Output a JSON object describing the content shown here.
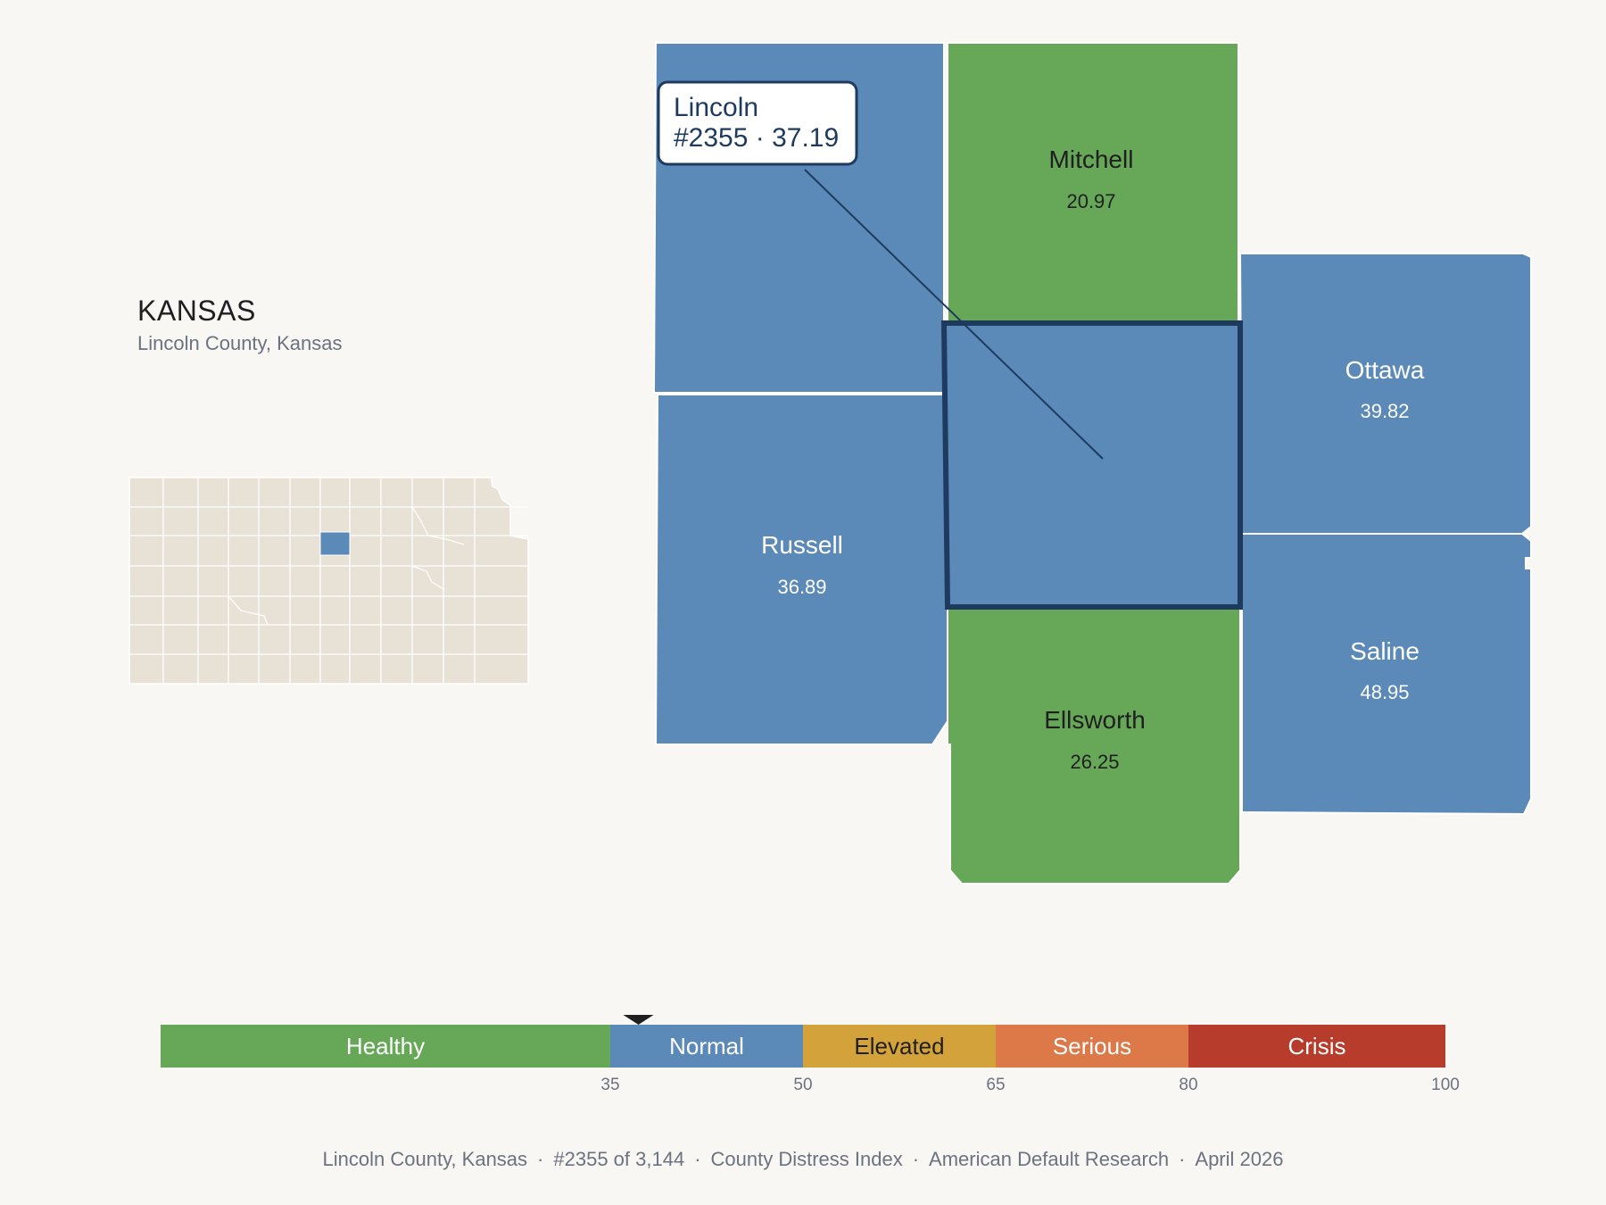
{
  "state": {
    "name": "KANSAS",
    "subtitle": "Lincoln County, Kansas"
  },
  "focus_county": {
    "name": "Lincoln",
    "rank": "#2355",
    "score": "37.19",
    "label": "#2355 · 37.19",
    "category": "Normal"
  },
  "neighbors": [
    {
      "name": "Mitchell",
      "score": "20.97",
      "category": "Healthy"
    },
    {
      "name": "Ottawa",
      "score": "39.82",
      "category": "Normal"
    },
    {
      "name": "Russell",
      "score": "36.89",
      "category": "Normal"
    },
    {
      "name": "Saline",
      "score": "48.95",
      "category": "Normal"
    },
    {
      "name": "Ellsworth",
      "score": "26.25",
      "category": "Healthy"
    }
  ],
  "legend": {
    "bands": [
      {
        "label": "Healthy",
        "from": 0,
        "to": 35,
        "color": "#66a758"
      },
      {
        "label": "Normal",
        "from": 35,
        "to": 50,
        "color": "#5b89b8"
      },
      {
        "label": "Elevated",
        "from": 50,
        "to": 65,
        "color": "#d4a23a"
      },
      {
        "label": "Serious",
        "from": 65,
        "to": 80,
        "color": "#dd7849"
      },
      {
        "label": "Crisis",
        "from": 80,
        "to": 100,
        "color": "#b83c2c"
      }
    ],
    "ticks": [
      "35",
      "50",
      "65",
      "80",
      "100"
    ],
    "marker_value": 37.19
  },
  "footer": {
    "items": [
      "Lincoln County, Kansas",
      "#2355 of 3,144",
      "County Distress Index",
      "American Default Research",
      "April 2026"
    ],
    "separator": "·"
  },
  "colors": {
    "background": "#f9f7f4",
    "healthy": "#66a758",
    "normal": "#5b89b8",
    "focus_outline": "#1e3a5f",
    "inset_fill": "#e8e2d6"
  },
  "icons": {
    "legend_marker": "triangle-down-icon"
  }
}
